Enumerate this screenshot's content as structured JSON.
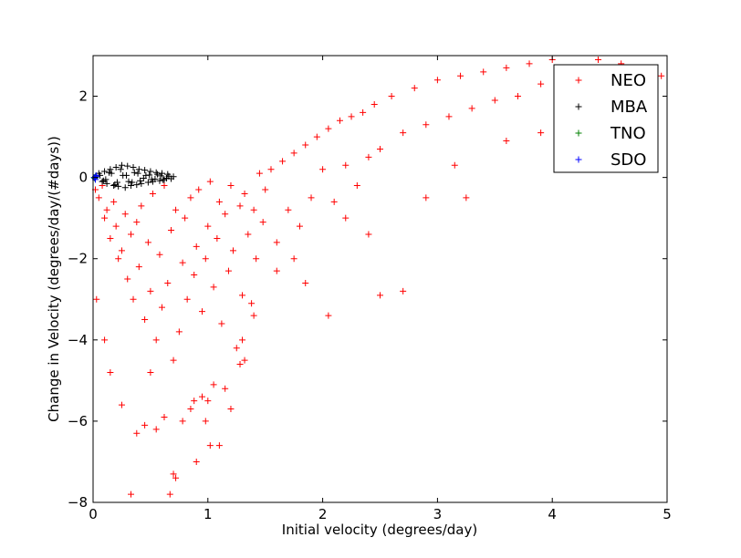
{
  "chart_data": {
    "type": "scatter",
    "title": "",
    "xlabel": "Initial velocity (degrees/day)",
    "ylabel": "Change in Velocity (degrees/day/(#days))",
    "xlim": [
      0,
      5
    ],
    "ylim": [
      -8,
      3
    ],
    "x_ticks": [
      0,
      1,
      2,
      3,
      4,
      5
    ],
    "y_ticks": [
      -8,
      -6,
      -4,
      -2,
      0,
      2
    ],
    "marker": "+",
    "grid": false,
    "legend_position": "top-right",
    "series": [
      {
        "name": "NEO",
        "color": "#ff0000",
        "description_of_distribution": "wedge",
        "x": [
          0.02,
          0.05,
          0.08,
          0.1,
          0.12,
          0.15,
          0.18,
          0.2,
          0.22,
          0.25,
          0.28,
          0.3,
          0.33,
          0.35,
          0.38,
          0.4,
          0.42,
          0.45,
          0.48,
          0.5,
          0.52,
          0.55,
          0.58,
          0.6,
          0.62,
          0.65,
          0.68,
          0.7,
          0.72,
          0.75,
          0.78,
          0.8,
          0.82,
          0.85,
          0.88,
          0.9,
          0.92,
          0.95,
          0.98,
          1.0,
          1.02,
          1.05,
          1.08,
          1.1,
          1.12,
          1.15,
          1.18,
          1.2,
          1.22,
          1.25,
          1.28,
          1.3,
          1.32,
          1.35,
          1.38,
          1.4,
          1.42,
          1.45,
          1.48,
          1.5,
          1.55,
          1.6,
          1.65,
          1.7,
          1.75,
          1.8,
          1.85,
          1.9,
          1.95,
          2.0,
          2.05,
          2.1,
          2.15,
          2.2,
          2.25,
          2.3,
          2.35,
          2.4,
          2.45,
          2.5,
          2.6,
          2.7,
          2.8,
          2.9,
          3.0,
          3.1,
          3.2,
          3.3,
          3.4,
          3.5,
          3.6,
          3.7,
          3.8,
          3.9,
          4.0,
          4.2,
          4.4,
          4.6,
          4.8,
          0.33,
          0.45,
          0.67,
          0.7,
          0.9,
          1.02,
          1.1,
          0.98,
          0.85,
          0.55,
          0.78,
          1.0,
          1.15,
          1.2,
          1.28,
          1.32,
          0.95,
          0.5,
          0.25,
          0.15,
          0.1,
          0.03,
          0.38,
          0.62,
          0.72,
          0.88,
          1.05,
          2.5,
          2.7,
          2.05,
          1.85,
          1.6,
          1.4,
          3.25,
          3.15,
          3.6,
          3.9,
          4.3,
          4.5,
          4.95,
          2.9,
          2.4,
          2.2,
          1.3,
          1.75
        ],
        "y": [
          -0.3,
          -0.5,
          -0.2,
          -1.0,
          -0.8,
          -1.5,
          -0.6,
          -1.2,
          -2.0,
          -1.8,
          -0.9,
          -2.5,
          -1.4,
          -3.0,
          -1.1,
          -2.2,
          -0.7,
          -3.5,
          -1.6,
          -2.8,
          -0.4,
          -4.0,
          -1.9,
          -3.2,
          -0.2,
          -2.6,
          -1.3,
          -4.5,
          -0.8,
          -3.8,
          -2.1,
          -1.0,
          -3.0,
          -0.5,
          -2.4,
          -1.7,
          -0.3,
          -3.3,
          -2.0,
          -1.2,
          -0.1,
          -2.7,
          -1.5,
          -0.6,
          -3.6,
          -0.9,
          -2.3,
          -0.2,
          -1.8,
          -4.2,
          -0.7,
          -2.9,
          -0.4,
          -1.4,
          -3.1,
          -0.8,
          -2.0,
          0.1,
          -1.1,
          -0.3,
          0.2,
          -1.6,
          0.4,
          -0.8,
          0.6,
          -1.2,
          0.8,
          -0.5,
          1.0,
          0.2,
          1.2,
          -0.6,
          1.4,
          0.3,
          1.5,
          -0.2,
          1.6,
          0.5,
          1.8,
          0.7,
          2.0,
          1.1,
          2.2,
          1.3,
          2.4,
          1.5,
          2.5,
          1.7,
          2.6,
          1.9,
          2.7,
          2.0,
          2.8,
          2.3,
          2.9,
          2.7,
          2.9,
          2.8,
          2.6,
          -7.8,
          -6.1,
          -7.8,
          -7.3,
          -7.0,
          -6.6,
          -6.6,
          -6.0,
          -5.7,
          -6.2,
          -6.0,
          -5.5,
          -5.2,
          -5.7,
          -4.6,
          -4.5,
          -5.4,
          -4.8,
          -5.6,
          -4.8,
          -4.0,
          -3.0,
          -6.3,
          -5.9,
          -7.4,
          -5.5,
          -5.1,
          -2.9,
          -2.8,
          -3.4,
          -2.6,
          -2.3,
          -3.4,
          -0.5,
          0.3,
          0.9,
          1.1,
          2.0,
          2.4,
          2.5,
          -0.5,
          -1.4,
          -1.0,
          -4.0,
          -2.0
        ]
      },
      {
        "name": "MBA",
        "color": "#000000",
        "x": [
          0.02,
          0.05,
          0.08,
          0.1,
          0.12,
          0.15,
          0.18,
          0.2,
          0.22,
          0.25,
          0.28,
          0.3,
          0.33,
          0.35,
          0.38,
          0.4,
          0.42,
          0.45,
          0.48,
          0.5,
          0.52,
          0.55,
          0.58,
          0.6,
          0.62,
          0.65,
          0.68,
          0.7,
          0.06,
          0.11,
          0.16,
          0.21,
          0.26,
          0.31,
          0.36,
          0.41,
          0.46,
          0.51,
          0.56,
          0.61,
          0.66,
          0.09,
          0.14,
          0.19,
          0.24,
          0.29,
          0.34,
          0.39,
          0.44,
          0.49,
          0.54,
          0.59,
          0.64
        ],
        "y": [
          0.0,
          0.1,
          -0.1,
          0.15,
          -0.15,
          0.2,
          -0.2,
          0.25,
          -0.22,
          0.3,
          -0.25,
          0.28,
          -0.2,
          0.25,
          -0.18,
          0.2,
          -0.15,
          0.18,
          -0.12,
          0.15,
          -0.1,
          0.12,
          -0.08,
          0.1,
          -0.05,
          0.08,
          -0.03,
          0.02,
          0.05,
          -0.05,
          0.1,
          -0.12,
          0.05,
          -0.1,
          0.12,
          -0.08,
          0.05,
          -0.05,
          0.08,
          -0.06,
          0.03,
          -0.08,
          0.12,
          -0.18,
          0.2,
          0.05,
          -0.12,
          0.1,
          -0.02,
          0.06,
          -0.04,
          0.04,
          -0.02
        ]
      },
      {
        "name": "TNO",
        "color": "#008000",
        "x": [
          0.01,
          0.02,
          0.015
        ],
        "y": [
          0.0,
          0.02,
          -0.02
        ]
      },
      {
        "name": "SDO",
        "color": "#0000ff",
        "x": [
          0.01,
          0.02,
          0.03,
          0.025
        ],
        "y": [
          0.0,
          -0.05,
          0.02,
          0.05
        ]
      }
    ]
  }
}
